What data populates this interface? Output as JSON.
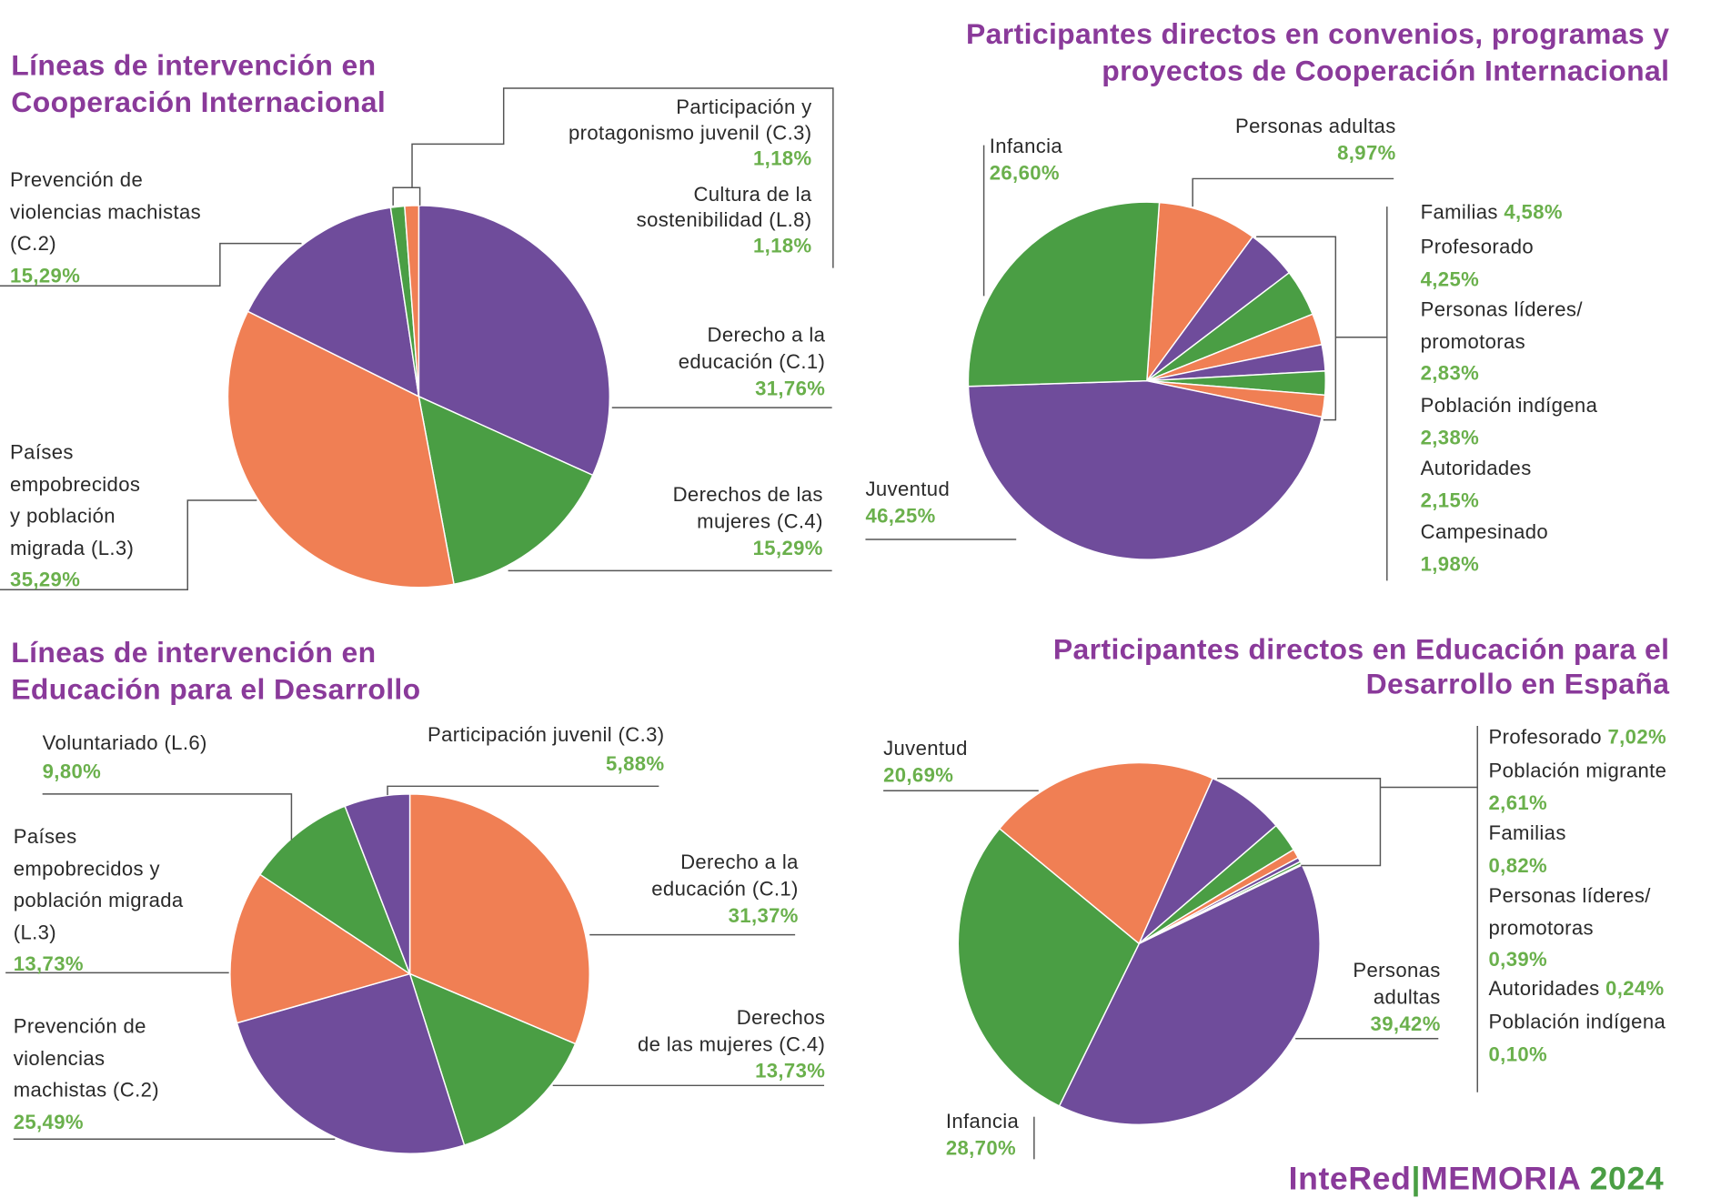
{
  "chart_data": [
    {
      "type": "pie",
      "title": [
        "Líneas de intervención en",
        "Cooperación Internacional"
      ],
      "slices": [
        {
          "label": [
            "Derecho a la",
            "educación (C.1)"
          ],
          "value": 31.76,
          "value_text": "31,76%",
          "color": "#6f4c9b"
        },
        {
          "label": [
            "Derechos de las",
            "mujeres (C.4)"
          ],
          "value": 15.29,
          "value_text": "15,29%",
          "color": "#4a9e44"
        },
        {
          "label": [
            "Países",
            "empobrecidos",
            "y población",
            "migrada (L.3)"
          ],
          "value": 35.29,
          "value_text": "35,29%",
          "color": "#f07f54"
        },
        {
          "label": [
            "Prevención de",
            "violencias machistas",
            "(C.2)"
          ],
          "value": 15.29,
          "value_text": "15,29%",
          "color": "#6f4c9b"
        },
        {
          "label": [
            "Cultura de la",
            "sostenibilidad (L.8)"
          ],
          "value": 1.18,
          "value_text": "1,18%",
          "color": "#4a9e44"
        },
        {
          "label": [
            "Participación y",
            "protagonismo juvenil (C.3)"
          ],
          "value": 1.18,
          "value_text": "1,18%",
          "color": "#f07f54"
        }
      ]
    },
    {
      "type": "pie",
      "title": [
        "Participantes directos en convenios, programas y",
        "proyectos de Cooperación Internacional"
      ],
      "slices": [
        {
          "label": [
            "Personas adultas"
          ],
          "value": 8.97,
          "value_text": "8,97%",
          "color": "#f07f54"
        },
        {
          "label": [
            "Familias"
          ],
          "value": 4.58,
          "value_text": "4,58%",
          "color": "#6f4c9b"
        },
        {
          "label": [
            "Profesorado"
          ],
          "value": 4.25,
          "value_text": "4,25%",
          "color": "#4a9e44"
        },
        {
          "label": [
            "Personas líderes/",
            "promotoras"
          ],
          "value": 2.83,
          "value_text": "2,83%",
          "color": "#f07f54"
        },
        {
          "label": [
            "Población indígena"
          ],
          "value": 2.38,
          "value_text": "2,38%",
          "color": "#6f4c9b"
        },
        {
          "label": [
            "Autoridades"
          ],
          "value": 2.15,
          "value_text": "2,15%",
          "color": "#4a9e44"
        },
        {
          "label": [
            "Campesinado"
          ],
          "value": 1.98,
          "value_text": "1,98%",
          "color": "#f07f54"
        },
        {
          "label": [
            "Juventud"
          ],
          "value": 46.25,
          "value_text": "46,25%",
          "color": "#6f4c9b"
        },
        {
          "label": [
            "Infancia"
          ],
          "value": 26.6,
          "value_text": "26,60%",
          "color": "#4a9e44"
        }
      ]
    },
    {
      "type": "pie",
      "title": [
        "Líneas de intervención en",
        "Educación para el Desarrollo"
      ],
      "slices": [
        {
          "label": [
            "Derecho a la",
            "educación (C.1)"
          ],
          "value": 31.37,
          "value_text": "31,37%",
          "color": "#f07f54"
        },
        {
          "label": [
            "Derechos",
            "de las mujeres (C.4)"
          ],
          "value": 13.73,
          "value_text": "13,73%",
          "color": "#4a9e44"
        },
        {
          "label": [
            "Prevención de",
            "violencias",
            "machistas (C.2)"
          ],
          "value": 25.49,
          "value_text": "25,49%",
          "color": "#6f4c9b"
        },
        {
          "label": [
            "Países",
            "empobrecidos y",
            "población migrada",
            "(L.3)"
          ],
          "value": 13.73,
          "value_text": "13,73%",
          "color": "#f07f54"
        },
        {
          "label": [
            "Voluntariado (L.6)"
          ],
          "value": 9.8,
          "value_text": "9,80%",
          "color": "#4a9e44"
        },
        {
          "label": [
            "Participación juvenil (C.3)"
          ],
          "value": 5.88,
          "value_text": "5,88%",
          "color": "#6f4c9b"
        }
      ]
    },
    {
      "type": "pie",
      "title": [
        "Participantes directos en Educación para el",
        "Desarrollo en España"
      ],
      "slices": [
        {
          "label": [
            "Juventud"
          ],
          "value": 20.69,
          "value_text": "20,69%",
          "color": "#f07f54"
        },
        {
          "label": [
            "Profesorado"
          ],
          "value": 7.02,
          "value_text": "7,02%",
          "color": "#6f4c9b"
        },
        {
          "label": [
            "Población migrante"
          ],
          "value": 2.61,
          "value_text": "2,61%",
          "color": "#4a9e44"
        },
        {
          "label": [
            "Familias"
          ],
          "value": 0.82,
          "value_text": "0,82%",
          "color": "#f07f54"
        },
        {
          "label": [
            "Personas líderes/",
            "promotoras"
          ],
          "value": 0.39,
          "value_text": "0,39%",
          "color": "#6f4c9b"
        },
        {
          "label": [
            "Autoridades"
          ],
          "value": 0.24,
          "value_text": "0,24%",
          "color": "#4a9e44"
        },
        {
          "label": [
            "Población indígena"
          ],
          "value": 0.1,
          "value_text": "0,10%",
          "color": "#f07f54"
        },
        {
          "label": [
            "Personas",
            "adultas"
          ],
          "value": 39.42,
          "value_text": "39,42%",
          "color": "#6f4c9b"
        },
        {
          "label": [
            "Infancia"
          ],
          "value": 28.7,
          "value_text": "28,70%",
          "color": "#4a9e44"
        }
      ]
    }
  ],
  "footer": {
    "brand": "InteRed",
    "separator": "|",
    "memoria": "MEMORIA",
    "year": "2024"
  }
}
